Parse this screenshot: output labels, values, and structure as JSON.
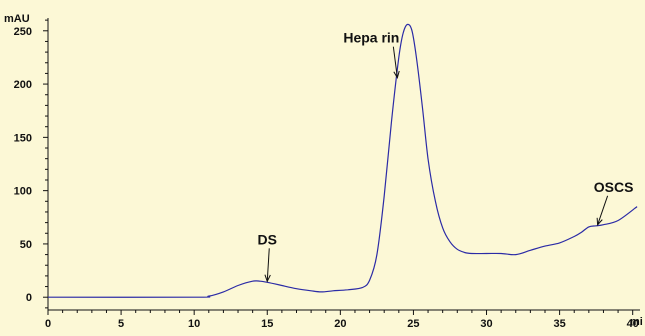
{
  "chart_data": {
    "type": "line",
    "ylabel": "mAU",
    "xlabel": "mi",
    "xlim": [
      0,
      40.5
    ],
    "ylim": [
      -12,
      262
    ],
    "xticks": [
      0,
      5,
      10,
      15,
      20,
      25,
      30,
      35,
      40
    ],
    "yticks": [
      0,
      50,
      100,
      150,
      200,
      250
    ],
    "grid": false,
    "colors": {
      "line": "#2b2ba6",
      "axis": "#111111",
      "background": "#fcf8d6"
    },
    "series": [
      {
        "x": [
          0,
          10,
          11,
          12,
          13,
          14,
          14.5,
          15,
          16,
          17,
          18,
          18.7,
          19.5,
          20.5,
          21.5,
          22,
          22.5,
          23,
          23.5,
          24,
          24.3,
          24.6,
          24.9,
          25.2,
          25.6,
          26,
          26.5,
          27,
          27.5,
          28,
          28.5,
          29,
          30,
          31,
          32,
          33,
          34,
          35,
          36,
          36.5,
          37,
          37.5,
          38,
          39,
          40.3
        ],
        "y": [
          0,
          0,
          1,
          5,
          11,
          15,
          15,
          14,
          11,
          8,
          6,
          5,
          6,
          7,
          9,
          16,
          40,
          95,
          165,
          225,
          248,
          256,
          250,
          225,
          180,
          130,
          90,
          65,
          52,
          45,
          42,
          41,
          41,
          41,
          40,
          44,
          48,
          51,
          57,
          61,
          66,
          67,
          68,
          72,
          85
        ]
      }
    ],
    "annotations": [
      {
        "text": "DS",
        "x": 15.0,
        "y": 14
      },
      {
        "text": "Hepa rin",
        "x": 23.9,
        "y": 205
      },
      {
        "text": "OSCS",
        "x": 37.6,
        "y": 67
      }
    ]
  }
}
